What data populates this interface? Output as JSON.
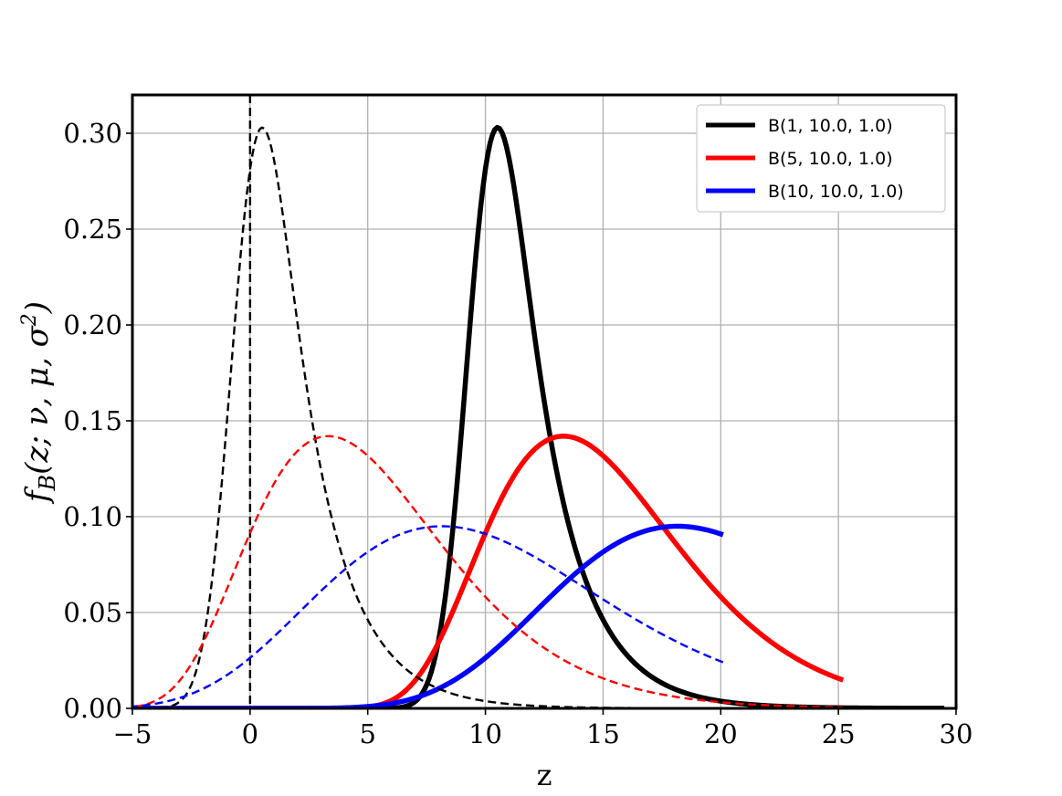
{
  "chart_data": {
    "type": "line",
    "xlabel": "z",
    "ylabel_parts": {
      "f": "f",
      "sub": "B",
      "args": "(z; ν, μ, σ",
      "sup": "2",
      "close": ")"
    },
    "xlim": [
      -5,
      30
    ],
    "ylim": [
      0,
      0.32
    ],
    "xticks": [
      -5,
      0,
      5,
      10,
      15,
      20,
      25,
      30
    ],
    "xtick_labels": [
      "−5",
      "0",
      "5",
      "10",
      "15",
      "20",
      "25",
      "30"
    ],
    "yticks": [
      0.0,
      0.05,
      0.1,
      0.15,
      0.2,
      0.25,
      0.3
    ],
    "ytick_labels": [
      "0.00",
      "0.05",
      "0.10",
      "0.15",
      "0.20",
      "0.25",
      "0.30"
    ],
    "grid": true,
    "legend_position": "top-right",
    "vline": {
      "x": 0,
      "color": "#000000",
      "style": "dashed"
    },
    "series": [
      {
        "name": "B(1, 10.0, 1.0)",
        "color": "#000000",
        "style": "solid",
        "k": 1,
        "nu": 10.0,
        "sigma2": 1.0,
        "peak_x": 10.5,
        "peak_y": 0.303
      },
      {
        "name": "B(5, 10.0, 1.0)",
        "color": "#ff0000",
        "style": "solid",
        "k": 5,
        "nu": 10.0,
        "sigma2": 1.0,
        "peak_x": 13.3,
        "peak_y": 0.142
      },
      {
        "name": "B(10, 10.0, 1.0)",
        "color": "#0000ff",
        "style": "solid",
        "k": 10,
        "nu": 10.0,
        "sigma2": 1.0,
        "peak_x": 18.2,
        "peak_y": 0.095
      },
      {
        "name": "",
        "color": "#000000",
        "style": "dashed",
        "k": 1,
        "nu": 0.0,
        "sigma2": 1.0,
        "peak_x": 0.5,
        "peak_y": 0.303
      },
      {
        "name": "",
        "color": "#ff0000",
        "style": "dashed",
        "k": 5,
        "nu": 0.0,
        "sigma2": 1.0,
        "peak_x": 3.3,
        "peak_y": 0.142
      },
      {
        "name": "",
        "color": "#0000ff",
        "style": "dashed",
        "k": 10,
        "nu": 0.0,
        "sigma2": 1.0,
        "peak_x": 8.2,
        "peak_y": 0.095
      }
    ]
  }
}
